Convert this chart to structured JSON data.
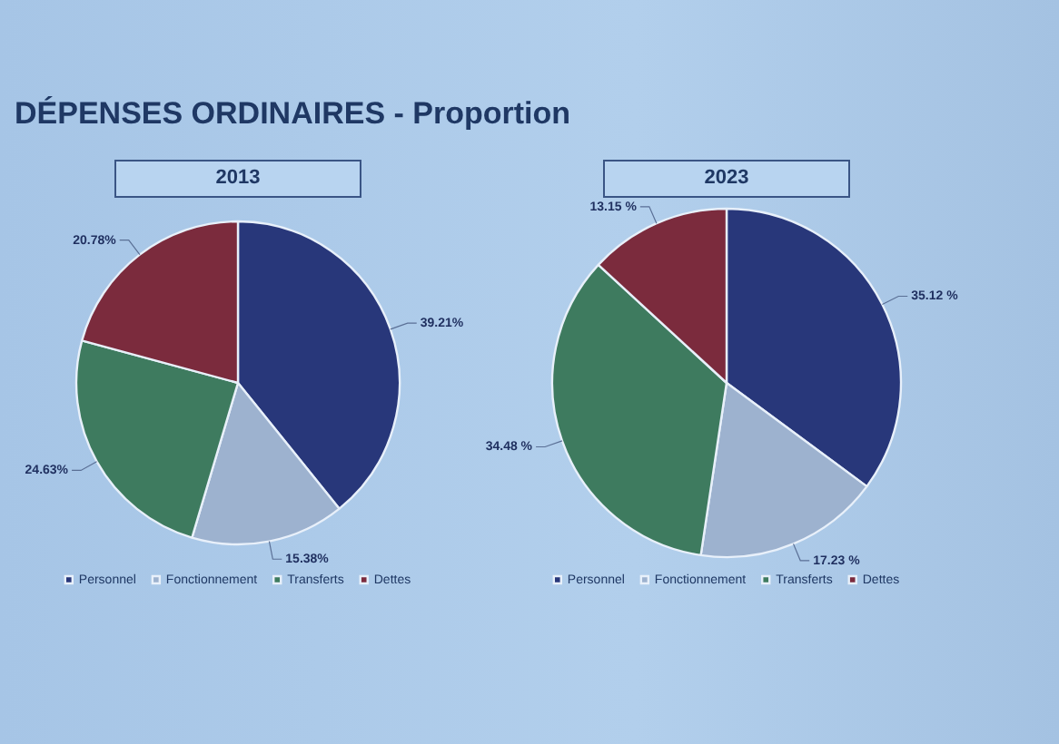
{
  "chart_data": [
    {
      "type": "pie",
      "title": "DÉPENSES ORDINAIRES - Proportion",
      "subtitle": "2013",
      "categories": [
        "Personnel",
        "Fonctionnement",
        "Transferts",
        "Dettes"
      ],
      "values": [
        39.21,
        15.38,
        24.63,
        20.78
      ],
      "colors": [
        "#28377a",
        "#9db2cf",
        "#3e7b5f",
        "#7b2b3d"
      ],
      "value_labels": [
        "39.21%",
        "15.38%",
        "24.63%",
        "20.78%"
      ],
      "legend": "bottom"
    },
    {
      "type": "pie",
      "subtitle": "2023",
      "categories": [
        "Personnel",
        "Fonctionnement",
        "Transferts",
        "Dettes"
      ],
      "values": [
        35.12,
        17.23,
        34.48,
        13.15
      ],
      "colors": [
        "#28377a",
        "#9db2cf",
        "#3e7b5f",
        "#7b2b3d"
      ],
      "value_labels": [
        "35.12 %",
        "17.23 %",
        "34.48 %",
        "13.15 %"
      ],
      "legend": "bottom"
    }
  ]
}
